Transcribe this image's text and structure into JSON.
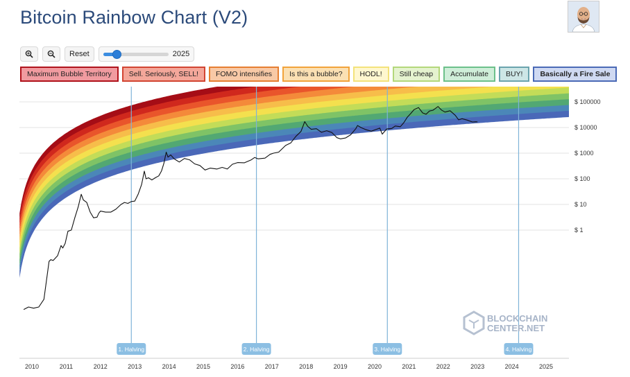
{
  "header": {
    "title": "Bitcoin Rainbow Chart (V2)"
  },
  "controls": {
    "zoom_in_label": "⊕",
    "zoom_out_label": "⊖",
    "reset_label": "Reset",
    "slider_value": "2025",
    "slider_fraction": 0.2
  },
  "legend": [
    {
      "label": "Maximum Bubble Territory",
      "color": "#f19ba0",
      "border": "#b0121b",
      "bold": false
    },
    {
      "label": "Sell. Seriously, SELL!",
      "color": "#f4a79a",
      "border": "#d24431",
      "bold": false
    },
    {
      "label": "FOMO intensifies",
      "color": "#f8c9a6",
      "border": "#e67e31",
      "bold": false
    },
    {
      "label": "Is this a bubble?",
      "color": "#fbe0b3",
      "border": "#f2a33a",
      "bold": false
    },
    {
      "label": "HODL!",
      "color": "#fff7cf",
      "border": "#f3e27a",
      "bold": false
    },
    {
      "label": "Still cheap",
      "color": "#e5f3cf",
      "border": "#b3d77a",
      "bold": false
    },
    {
      "label": "Accumulate",
      "color": "#cfeed9",
      "border": "#6cc08a",
      "bold": false
    },
    {
      "label": "BUY!",
      "color": "#cde6e6",
      "border": "#6aa3ad",
      "bold": false
    },
    {
      "label": "Basically a Fire Sale",
      "color": "#cfd9f2",
      "border": "#4a69b6",
      "bold": true
    }
  ],
  "chart_data": {
    "type": "line",
    "y_scale": "log",
    "x_ticks": [
      "2010",
      "2011",
      "2012",
      "2013",
      "2014",
      "2015",
      "2016",
      "2017",
      "2018",
      "2019",
      "2020",
      "2021",
      "2022",
      "2023",
      "2024",
      "2025"
    ],
    "y_ticks": [
      "$ 1",
      "$ 10",
      "$ 100",
      "$ 1000",
      "$ 10000",
      "$ 100000"
    ],
    "band_colors": [
      "#a50d16",
      "#d0281d",
      "#e9552b",
      "#f48a3a",
      "#f7bd4a",
      "#f4e04e",
      "#c3dc58",
      "#7fc366",
      "#52a873",
      "#4b87b8",
      "#4a68b8"
    ],
    "halvings": [
      {
        "label": "1. Halving",
        "year": 2012.9
      },
      {
        "label": "2. Halving",
        "year": 2016.55
      },
      {
        "label": "3. Halving",
        "year": 2020.37
      },
      {
        "label": "4. Halving",
        "year": 2024.2
      }
    ],
    "price_series": [
      [
        2009.76,
        0.0008
      ],
      [
        2009.9,
        0.001
      ],
      [
        2010.05,
        0.0009
      ],
      [
        2010.2,
        0.001
      ],
      [
        2010.35,
        0.002
      ],
      [
        2010.5,
        0.06
      ],
      [
        2010.55,
        0.07
      ],
      [
        2010.62,
        0.065
      ],
      [
        2010.75,
        0.1
      ],
      [
        2010.85,
        0.25
      ],
      [
        2010.9,
        0.2
      ],
      [
        2010.97,
        0.3
      ],
      [
        2011.05,
        0.9
      ],
      [
        2011.15,
        1.0
      ],
      [
        2011.25,
        3.0
      ],
      [
        2011.35,
        8.0
      ],
      [
        2011.44,
        25.0
      ],
      [
        2011.5,
        15.0
      ],
      [
        2011.6,
        12.0
      ],
      [
        2011.7,
        5.0
      ],
      [
        2011.8,
        3.0
      ],
      [
        2011.9,
        3.2
      ],
      [
        2011.95,
        4.5
      ],
      [
        2012.0,
        5.5
      ],
      [
        2012.15,
        5.0
      ],
      [
        2012.3,
        5.0
      ],
      [
        2012.45,
        6.5
      ],
      [
        2012.6,
        10.0
      ],
      [
        2012.7,
        12.0
      ],
      [
        2012.8,
        11.0
      ],
      [
        2012.9,
        13.0
      ],
      [
        2013.0,
        13.5
      ],
      [
        2013.1,
        25.0
      ],
      [
        2013.2,
        60.0
      ],
      [
        2013.28,
        200.0
      ],
      [
        2013.33,
        100.0
      ],
      [
        2013.4,
        110.0
      ],
      [
        2013.5,
        90.0
      ],
      [
        2013.6,
        110.0
      ],
      [
        2013.7,
        130.0
      ],
      [
        2013.78,
        200.0
      ],
      [
        2013.85,
        400.0
      ],
      [
        2013.92,
        1100.0
      ],
      [
        2013.97,
        700.0
      ],
      [
        2014.05,
        850.0
      ],
      [
        2014.15,
        600.0
      ],
      [
        2014.3,
        450.0
      ],
      [
        2014.45,
        620.0
      ],
      [
        2014.6,
        550.0
      ],
      [
        2014.75,
        380.0
      ],
      [
        2014.9,
        330.0
      ],
      [
        2015.05,
        220.0
      ],
      [
        2015.2,
        260.0
      ],
      [
        2015.4,
        240.0
      ],
      [
        2015.55,
        280.0
      ],
      [
        2015.7,
        240.0
      ],
      [
        2015.85,
        370.0
      ],
      [
        2016.0,
        430.0
      ],
      [
        2016.2,
        420.0
      ],
      [
        2016.4,
        550.0
      ],
      [
        2016.5,
        680.0
      ],
      [
        2016.6,
        600.0
      ],
      [
        2016.8,
        640.0
      ],
      [
        2016.95,
        900.0
      ],
      [
        2017.05,
        1000.0
      ],
      [
        2017.2,
        1100.0
      ],
      [
        2017.4,
        2000.0
      ],
      [
        2017.55,
        2500.0
      ],
      [
        2017.7,
        4500.0
      ],
      [
        2017.85,
        7000.0
      ],
      [
        2017.96,
        17000.0
      ],
      [
        2018.05,
        11000.0
      ],
      [
        2018.15,
        8500.0
      ],
      [
        2018.3,
        9000.0
      ],
      [
        2018.45,
        6500.0
      ],
      [
        2018.6,
        7500.0
      ],
      [
        2018.75,
        6400.0
      ],
      [
        2018.9,
        4000.0
      ],
      [
        2019.0,
        3600.0
      ],
      [
        2019.15,
        3900.0
      ],
      [
        2019.3,
        5200.0
      ],
      [
        2019.45,
        9000.0
      ],
      [
        2019.5,
        12000.0
      ],
      [
        2019.6,
        10000.0
      ],
      [
        2019.75,
        8200.0
      ],
      [
        2019.9,
        7200.0
      ],
      [
        2020.05,
        8500.0
      ],
      [
        2020.15,
        9500.0
      ],
      [
        2020.22,
        5500.0
      ],
      [
        2020.35,
        8800.0
      ],
      [
        2020.5,
        9200.0
      ],
      [
        2020.6,
        11500.0
      ],
      [
        2020.75,
        10800.0
      ],
      [
        2020.85,
        15500.0
      ],
      [
        2020.95,
        25000.0
      ],
      [
        2021.05,
        35000.0
      ],
      [
        2021.15,
        50000.0
      ],
      [
        2021.28,
        60000.0
      ],
      [
        2021.4,
        37000.0
      ],
      [
        2021.5,
        33000.0
      ],
      [
        2021.6,
        44000.0
      ],
      [
        2021.7,
        47000.0
      ],
      [
        2021.85,
        66000.0
      ],
      [
        2021.95,
        48000.0
      ],
      [
        2022.05,
        40000.0
      ],
      [
        2022.2,
        45000.0
      ],
      [
        2022.35,
        30000.0
      ],
      [
        2022.45,
        20000.0
      ],
      [
        2022.55,
        22000.0
      ],
      [
        2022.7,
        19500.0
      ],
      [
        2022.85,
        16500.0
      ],
      [
        2022.95,
        16800.0
      ],
      [
        2023.0,
        16600.0
      ]
    ]
  },
  "watermark": {
    "line1": "BLOCKCHAIN",
    "line2": "CENTER.NET"
  }
}
